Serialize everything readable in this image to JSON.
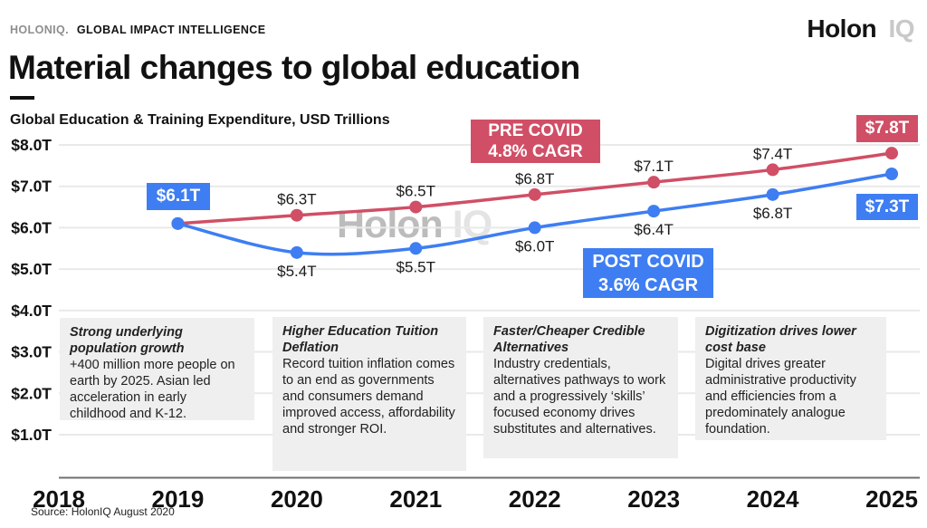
{
  "brand": {
    "mark": "HOLONIQ.",
    "tagline": "GLOBAL IMPACT INTELLIGENCE"
  },
  "logo": {
    "word1": "Holon",
    "word2": "IQ"
  },
  "title": "Material changes to global education",
  "subtitle": "Global Education & Training Expenditure, USD Trillions",
  "watermark": {
    "word1": "Holon",
    "word2": "IQ"
  },
  "source": "Source: HolonIQ August 2020",
  "colors": {
    "pre_covid_red": "#d04f66",
    "post_covid_blue": "#3e7ef2",
    "grid": "#e9e9e9",
    "axis": "#6f6f6f",
    "label_text": "#1a1a1a",
    "tick_text": "#111111",
    "note_bg": "#efefef",
    "watermark_dark": "#bcbcbc",
    "watermark_light": "#e4e4e4",
    "brand_gray": "#8e8e8e"
  },
  "badges": {
    "start_value": "$6.1T",
    "pre_end_value": "$7.8T",
    "post_end_value": "$7.3T",
    "pre_cagr_line1": "PRE COVID",
    "pre_cagr_line2": "4.8% CAGR",
    "post_cagr_line1": "POST COVID",
    "post_cagr_line2": "3.6% CAGR"
  },
  "notes": [
    {
      "heading": "Strong underlying population growth",
      "body": "+400 million more people on earth by 2025. Asian led acceleration in early childhood and K-12."
    },
    {
      "heading": "Higher Education Tuition Deflation",
      "body": "Record tuition inflation comes to an end as governments and consumers demand improved access, affordability and stronger ROI."
    },
    {
      "heading": "Faster/Cheaper Credible Alternatives",
      "body": "Industry credentials, alternatives pathways to work and a progressively ‘skills’ focused economy drives substitutes and alternatives."
    },
    {
      "heading": "Digitization drives lower cost base",
      "body": "Digital drives greater administrative productivity and efficiencies from a predominately analogue foundation."
    }
  ],
  "chart_data": {
    "type": "line",
    "title": "Global Education & Training Expenditure, USD Trillions",
    "x_categories": [
      "2018",
      "2019",
      "2020",
      "2021",
      "2022",
      "2023",
      "2024",
      "2025"
    ],
    "y_ticks": [
      {
        "label": "$8.0T",
        "value": 8.0
      },
      {
        "label": "$7.0T",
        "value": 7.0
      },
      {
        "label": "$6.0T",
        "value": 6.0
      },
      {
        "label": "$5.0T",
        "value": 5.0
      },
      {
        "label": "$4.0T",
        "value": 4.0
      },
      {
        "label": "$3.0T",
        "value": 3.0
      },
      {
        "label": "$2.0T",
        "value": 2.0
      },
      {
        "label": "$1.0T",
        "value": 1.0
      }
    ],
    "ylim": [
      1.0,
      8.0
    ],
    "grid": true,
    "legend_position": "inline-badges",
    "series": [
      {
        "name": "Pre COVID 4.8% CAGR",
        "color_key": "pre_covid_red",
        "points": [
          {
            "year": 2019,
            "value": 6.1,
            "label": "",
            "label_pos": "none"
          },
          {
            "year": 2020,
            "value": 6.3,
            "label": "$6.3T",
            "label_pos": "above"
          },
          {
            "year": 2021,
            "value": 6.5,
            "label": "$6.5T",
            "label_pos": "above"
          },
          {
            "year": 2022,
            "value": 6.8,
            "label": "$6.8T",
            "label_pos": "above"
          },
          {
            "year": 2023,
            "value": 7.1,
            "label": "$7.1T",
            "label_pos": "above"
          },
          {
            "year": 2024,
            "value": 7.4,
            "label": "$7.4T",
            "label_pos": "above"
          },
          {
            "year": 2025,
            "value": 7.8,
            "label": "",
            "label_pos": "none"
          }
        ]
      },
      {
        "name": "Post COVID 3.6% CAGR",
        "color_key": "post_covid_blue",
        "points": [
          {
            "year": 2019,
            "value": 6.1,
            "label": "",
            "label_pos": "none"
          },
          {
            "year": 2020,
            "value": 5.4,
            "label": "$5.4T",
            "label_pos": "below"
          },
          {
            "year": 2021,
            "value": 5.5,
            "label": "$5.5T",
            "label_pos": "below"
          },
          {
            "year": 2022,
            "value": 6.0,
            "label": "$6.0T",
            "label_pos": "below"
          },
          {
            "year": 2023,
            "value": 6.4,
            "label": "$6.4T",
            "label_pos": "below"
          },
          {
            "year": 2024,
            "value": 6.8,
            "label": "$6.8T",
            "label_pos": "below"
          },
          {
            "year": 2025,
            "value": 7.3,
            "label": "",
            "label_pos": "none"
          }
        ]
      }
    ]
  }
}
